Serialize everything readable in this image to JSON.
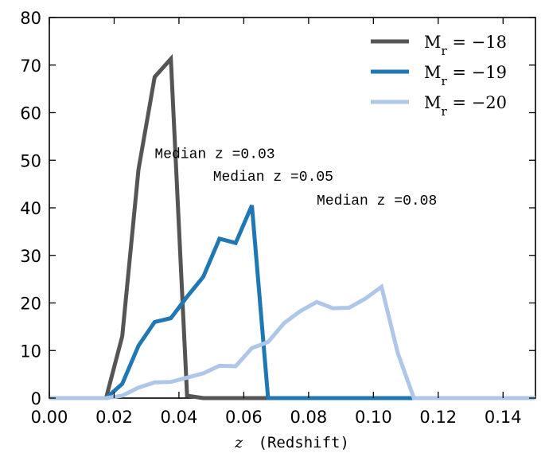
{
  "chart_data": {
    "type": "line",
    "xlabel_var": "z",
    "xlabel": "(Redshift)",
    "ylabel": "",
    "xlim": [
      0.0,
      0.15
    ],
    "ylim": [
      0,
      80
    ],
    "xticks": [
      0.0,
      0.02,
      0.04,
      0.06,
      0.08,
      0.1,
      0.12,
      0.14
    ],
    "xtick_labels": [
      "0.00",
      "0.02",
      "0.04",
      "0.06",
      "0.08",
      "0.10",
      "0.12",
      "0.14"
    ],
    "yticks": [
      0,
      10,
      20,
      30,
      40,
      50,
      60,
      70,
      80
    ],
    "ytick_labels": [
      "0",
      "10",
      "20",
      "30",
      "40",
      "50",
      "60",
      "70",
      "80"
    ],
    "grid": false,
    "legend_position": "top-right",
    "series": [
      {
        "name": "M_r = −18",
        "label_main": "M",
        "label_sub": "r",
        "label_rest": " = −18",
        "color": "#555555",
        "x": [
          0.0,
          0.0175,
          0.0225,
          0.0275,
          0.0325,
          0.0375,
          0.0425,
          0.0475,
          0.055,
          0.065,
          0.08,
          0.1,
          0.12,
          0.15
        ],
        "y": [
          0,
          0,
          13,
          48,
          67.5,
          71.3,
          0.5,
          0,
          0,
          0,
          0,
          0,
          0,
          0
        ]
      },
      {
        "name": "M_r = −19",
        "label_main": "M",
        "label_sub": "r",
        "label_rest": " = −19",
        "color": "#1f77b4",
        "x": [
          0.0,
          0.0175,
          0.0225,
          0.0275,
          0.0325,
          0.0375,
          0.0425,
          0.0475,
          0.0525,
          0.0575,
          0.0625,
          0.0675,
          0.08,
          0.1,
          0.12,
          0.15
        ],
        "y": [
          0,
          0,
          3,
          11,
          16,
          16.8,
          21.3,
          25.5,
          33.5,
          32.6,
          40.5,
          0,
          0,
          0,
          0,
          0
        ]
      },
      {
        "name": "M_r = −20",
        "label_main": "M",
        "label_sub": "r",
        "label_rest": " = −20",
        "color": "#aec7e8",
        "x": [
          0.0,
          0.0175,
          0.0225,
          0.0275,
          0.0325,
          0.0375,
          0.0425,
          0.0475,
          0.0525,
          0.0575,
          0.0625,
          0.0675,
          0.0725,
          0.0775,
          0.0825,
          0.0875,
          0.0925,
          0.0975,
          0.1025,
          0.1075,
          0.1125,
          0.12,
          0.15
        ],
        "y": [
          0,
          0,
          0.5,
          2.2,
          3.3,
          3.4,
          4.3,
          5.2,
          6.8,
          6.7,
          10.5,
          11.8,
          15.8,
          18.3,
          20.2,
          18.9,
          19.0,
          20.9,
          23.4,
          9.5,
          0,
          0,
          0
        ]
      }
    ],
    "annotations": [
      {
        "text": "Median z =0.03",
        "x": 0.0325,
        "y": 50.5
      },
      {
        "text": "Median z =0.05",
        "x": 0.0505,
        "y": 45.7
      },
      {
        "text": "Median z =0.08",
        "x": 0.0825,
        "y": 40.7
      }
    ]
  }
}
